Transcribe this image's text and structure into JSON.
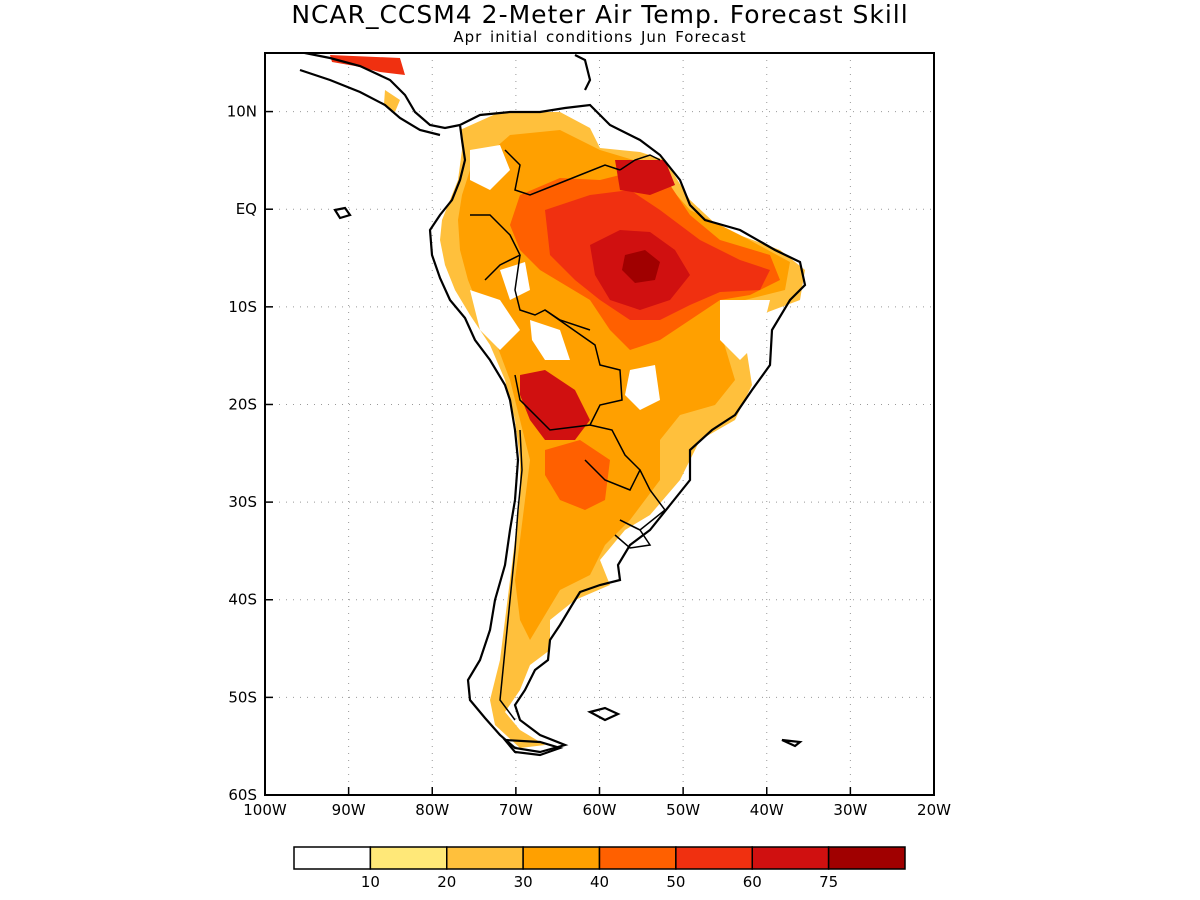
{
  "title": "NCAR_CCSM4 2-Meter Air Temp. Forecast Skill",
  "subtitle": "Apr initial conditions  Jun Forecast",
  "map": {
    "lon_range": [
      -100,
      -20
    ],
    "lat_range": [
      -60,
      16
    ],
    "lon_ticks": [
      {
        "value": -100,
        "label": "100W"
      },
      {
        "value": -90,
        "label": "90W"
      },
      {
        "value": -80,
        "label": "80W"
      },
      {
        "value": -70,
        "label": "70W"
      },
      {
        "value": -60,
        "label": "60W"
      },
      {
        "value": -50,
        "label": "50W"
      },
      {
        "value": -40,
        "label": "40W"
      },
      {
        "value": -30,
        "label": "30W"
      },
      {
        "value": -20,
        "label": "20W"
      }
    ],
    "lat_ticks": [
      {
        "value": 10,
        "label": "10N"
      },
      {
        "value": 0,
        "label": "EQ"
      },
      {
        "value": -10,
        "label": "10S"
      },
      {
        "value": -20,
        "label": "20S"
      },
      {
        "value": -30,
        "label": "30S"
      },
      {
        "value": -40,
        "label": "40S"
      },
      {
        "value": -50,
        "label": "50S"
      },
      {
        "value": -60,
        "label": "60S"
      }
    ],
    "grid": "dotted"
  },
  "colorbar": {
    "colors": [
      "#ffffff",
      "#ffe878",
      "#ffc03c",
      "#ffa000",
      "#ff6000",
      "#f03010",
      "#d01010",
      "#a00000"
    ],
    "labels": [
      "10",
      "20",
      "30",
      "40",
      "50",
      "60",
      "75"
    ]
  }
}
